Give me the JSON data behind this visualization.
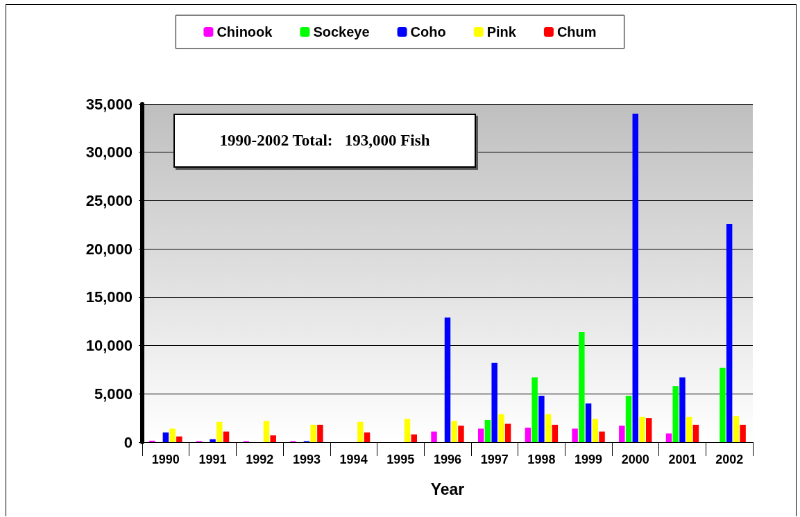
{
  "chart_data": {
    "type": "bar",
    "xlabel": "Year",
    "categories": [
      "1990",
      "1991",
      "1992",
      "1993",
      "1994",
      "1995",
      "1996",
      "1997",
      "1998",
      "1999",
      "2000",
      "2001",
      "2002"
    ],
    "series": [
      {
        "name": "Chinook",
        "color": "#ff00ff",
        "values": [
          150,
          100,
          100,
          100,
          null,
          null,
          1100,
          1400,
          1500,
          1400,
          1700,
          900,
          null
        ]
      },
      {
        "name": "Sockeye",
        "color": "#00ff00",
        "values": [
          null,
          null,
          null,
          null,
          null,
          null,
          null,
          2300,
          6700,
          11400,
          4800,
          5800,
          7700
        ]
      },
      {
        "name": "Coho",
        "color": "#0000ff",
        "values": [
          1000,
          300,
          null,
          100,
          null,
          null,
          12900,
          8200,
          4800,
          4000,
          34000,
          6700,
          22600
        ]
      },
      {
        "name": "Pink",
        "color": "#ffff00",
        "values": [
          1400,
          2100,
          2200,
          1800,
          2100,
          2400,
          2200,
          2900,
          2900,
          2400,
          2600,
          2600,
          2700
        ]
      },
      {
        "name": "Chum",
        "color": "#ff0000",
        "values": [
          600,
          1100,
          700,
          1800,
          1000,
          800,
          1700,
          1900,
          1800,
          1100,
          2500,
          1800,
          1800
        ]
      }
    ],
    "ylim": [
      0,
      35000
    ],
    "yticks": [
      0,
      {
        "value": 5000,
        "label": "5,000"
      },
      {
        "value": 10000,
        "label": "10,000"
      },
      {
        "value": 15000,
        "label": "15,000"
      },
      {
        "value": 20000,
        "label": "20,000"
      },
      {
        "value": 25000,
        "label": "25,000"
      },
      {
        "value": 30000,
        "label": "30,000"
      },
      {
        "value": 35000,
        "label": "35,000"
      }
    ],
    "grid": "y",
    "legend": "top",
    "annotations": [
      "1990-2002 Total:   193,000 Fish"
    ]
  }
}
